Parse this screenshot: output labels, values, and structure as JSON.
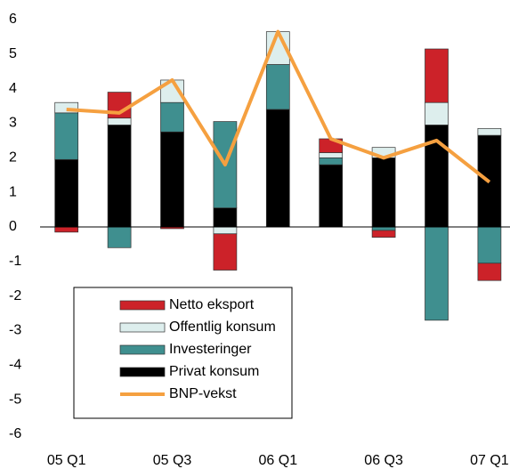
{
  "chart_data": {
    "type": "bar",
    "stacked": true,
    "categories": [
      "05 Q1",
      null,
      "05 Q3",
      null,
      "06 Q1",
      null,
      "06 Q3",
      null,
      "07 Q1"
    ],
    "series": [
      {
        "name": "Netto eksport",
        "color": "#cc2229",
        "values": [
          -0.15,
          0.75,
          -0.05,
          -1.05,
          0,
          0.4,
          -0.2,
          1.55,
          -0.5
        ]
      },
      {
        "name": "Offentlig konsum",
        "color": "#ddeeed",
        "values": [
          0.3,
          0.2,
          0.65,
          -0.2,
          0.95,
          0.15,
          0.3,
          0.65,
          0.2
        ]
      },
      {
        "name": "Investeringer",
        "color": "#3f8f8f",
        "values": [
          1.35,
          -0.6,
          0.85,
          2.5,
          1.3,
          0.2,
          -0.1,
          -2.7,
          -1.05
        ]
      },
      {
        "name": "Privat konsum",
        "color": "#000000",
        "values": [
          1.95,
          2.95,
          2.75,
          0.55,
          3.4,
          1.8,
          2.0,
          2.95,
          2.65
        ]
      },
      {
        "name": "BNP-vekst",
        "color": "#f5a040",
        "type": "line",
        "values": [
          3.4,
          3.3,
          4.25,
          1.8,
          5.65,
          2.55,
          2.0,
          2.5,
          1.3
        ]
      }
    ],
    "ylim": [
      -6,
      6
    ],
    "yticks": [
      -6,
      -5,
      -4,
      -3,
      -2,
      -1,
      0,
      1,
      2,
      3,
      4,
      5,
      6
    ]
  }
}
